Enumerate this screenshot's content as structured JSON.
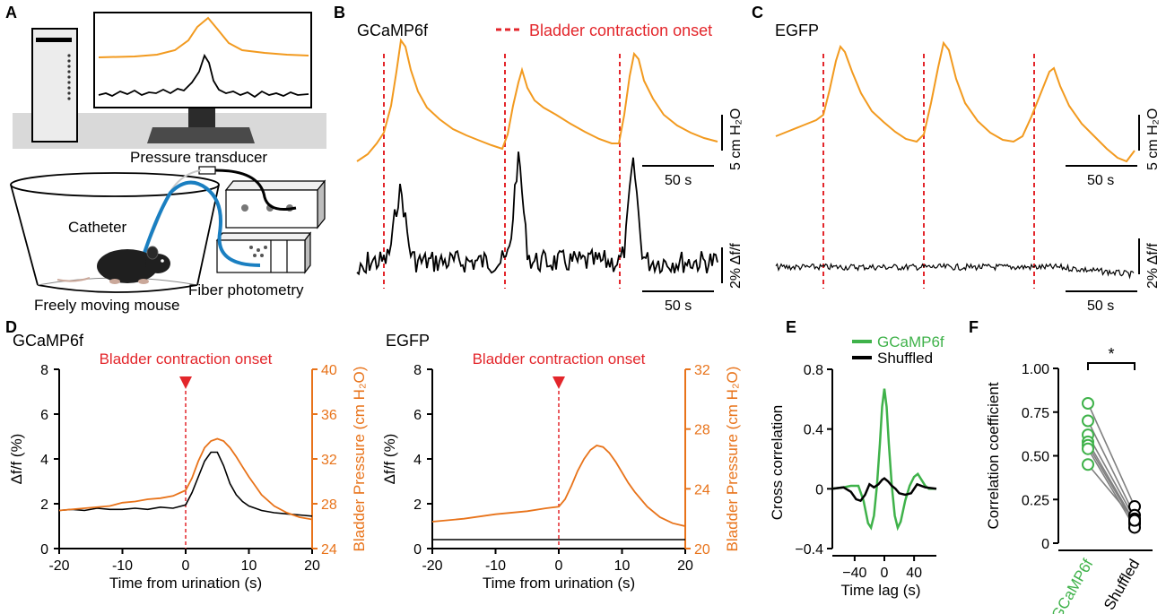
{
  "colors": {
    "orange": "#f29a1f",
    "pressure": "#e8731a",
    "red": "#e3262b",
    "green": "#3fb24a",
    "gray": "#808080",
    "blue": "#1a7fc1",
    "black": "#000000"
  },
  "panels": {
    "a": {
      "letter": "A",
      "pressure_transducer": "Pressure transducer",
      "catheter": "Catheter",
      "fiber_photometry": "Fiber photometry",
      "freely_moving_mouse": "Freely moving mouse",
      "icons": [
        "computer-tower-icon",
        "monitor-icon",
        "mouse-icon",
        "cage-icon",
        "photometry-box-icon",
        "transducer-box-icon"
      ]
    },
    "b": {
      "letter": "B",
      "title": "GCaMP6f",
      "legend": "Bladder contraction onset",
      "pressure_scale": "5 cm H₂O",
      "signal_scale": "2% Δf/f",
      "time_scale_1": "50 s",
      "time_scale_2": "50 s",
      "onsets_s": [
        12,
        75,
        134
      ]
    },
    "c": {
      "letter": "C",
      "title": "EGFP",
      "pressure_scale": "5 cm H₂O",
      "signal_scale": "2% Δf/f",
      "time_scale_1": "50 s",
      "time_scale_2": "50 s",
      "onsets_s": [
        25,
        75,
        129
      ]
    },
    "d": {
      "letter": "D"
    },
    "e": {
      "letter": "E"
    },
    "f": {
      "letter": "F"
    }
  },
  "chart_data": [
    {
      "id": "D-left",
      "type": "line",
      "title": "GCaMP6f",
      "annotation": "Bladder contraction onset",
      "xlabel": "Time from urination (s)",
      "ylabel": "Δf/f (%)",
      "y2label": "Bladder Pressure (cm H₂O)",
      "xlim": [
        -20,
        20
      ],
      "ylim": [
        0,
        8
      ],
      "y2lim": [
        24,
        40
      ],
      "xticks": [
        "-20",
        "-10",
        "0",
        "10",
        "20"
      ],
      "yticks": [
        "0",
        "2",
        "4",
        "6",
        "8"
      ],
      "y2ticks": [
        "24",
        "28",
        "32",
        "36",
        "40"
      ],
      "series": [
        {
          "name": "Δf/f",
          "axis": "left",
          "color": "black",
          "x": [
            -20,
            -18,
            -16,
            -14,
            -12,
            -10,
            -8,
            -6,
            -4,
            -2,
            0,
            1,
            2,
            3,
            4,
            5,
            6,
            7,
            8,
            9,
            10,
            11,
            12,
            14,
            16,
            18,
            20
          ],
          "values": [
            1.7,
            1.75,
            1.7,
            1.8,
            1.75,
            1.75,
            1.8,
            1.75,
            1.85,
            1.8,
            1.95,
            2.5,
            3.2,
            3.9,
            4.3,
            4.3,
            3.7,
            2.9,
            2.4,
            2.1,
            1.9,
            1.8,
            1.7,
            1.6,
            1.55,
            1.5,
            1.45
          ]
        },
        {
          "name": "Bladder Pressure",
          "axis": "right",
          "color": "pressure",
          "x": [
            -20,
            -16,
            -12,
            -10,
            -8,
            -6,
            -4,
            -2,
            0,
            1,
            2,
            3,
            4,
            5,
            6,
            7,
            8,
            9,
            10,
            11,
            12,
            14,
            16,
            18,
            20
          ],
          "values": [
            27.4,
            27.6,
            27.8,
            28.1,
            28.2,
            28.4,
            28.5,
            28.7,
            29.2,
            30.3,
            31.8,
            33.0,
            33.6,
            33.8,
            33.6,
            33.0,
            32.2,
            31.3,
            30.4,
            29.6,
            28.8,
            27.8,
            27.2,
            26.8,
            26.6
          ]
        }
      ]
    },
    {
      "id": "D-right",
      "type": "line",
      "title": "EGFP",
      "annotation": "Bladder contraction onset",
      "xlabel": "Time from urination (s)",
      "ylabel": "Δf/f (%)",
      "y2label": "Bladder Pressure (cm H₂O)",
      "xlim": [
        -20,
        20
      ],
      "ylim": [
        0,
        8
      ],
      "y2lim": [
        20,
        32
      ],
      "xticks": [
        "-20",
        "-10",
        "0",
        "10",
        "20"
      ],
      "yticks": [
        "0",
        "2",
        "4",
        "6",
        "8"
      ],
      "y2ticks": [
        "20",
        "24",
        "28",
        "32"
      ],
      "series": [
        {
          "name": "Δf/f",
          "axis": "left",
          "color": "black",
          "x": [
            -20,
            -10,
            0,
            10,
            20
          ],
          "values": [
            0.4,
            0.4,
            0.4,
            0.4,
            0.4
          ]
        },
        {
          "name": "Bladder Pressure",
          "axis": "right",
          "color": "pressure",
          "x": [
            -20,
            -15,
            -10,
            -5,
            -2,
            0,
            1,
            2,
            3,
            4,
            5,
            6,
            7,
            8,
            9,
            10,
            11,
            12,
            13,
            14,
            16,
            18,
            20
          ],
          "values": [
            21.8,
            22.0,
            22.3,
            22.5,
            22.7,
            22.8,
            23.3,
            24.2,
            25.2,
            26.0,
            26.6,
            26.9,
            26.8,
            26.4,
            25.8,
            25.1,
            24.4,
            23.8,
            23.3,
            22.8,
            22.1,
            21.7,
            21.5
          ]
        }
      ]
    },
    {
      "id": "E",
      "type": "line",
      "xlabel": "Time lag (s)",
      "ylabel": "Cross correlation",
      "xlim": [
        -70,
        70
      ],
      "ylim": [
        -0.4,
        0.8
      ],
      "xticks": [
        "−40",
        "0",
        "40"
      ],
      "yticks": [
        "−0.4",
        "0",
        "0.4",
        "0.8"
      ],
      "legend": [
        "GCaMP6f",
        "Shuffled"
      ],
      "series": [
        {
          "name": "GCaMP6f",
          "color": "green",
          "x": [
            -70,
            -55,
            -45,
            -35,
            -28,
            -22,
            -18,
            -14,
            -10,
            -6,
            -3,
            0,
            3,
            6,
            10,
            14,
            18,
            22,
            28,
            34,
            40,
            45,
            50,
            55,
            60,
            70
          ],
          "values": [
            0,
            0.01,
            0.02,
            0.02,
            -0.08,
            -0.23,
            -0.26,
            -0.18,
            0.02,
            0.3,
            0.55,
            0.67,
            0.55,
            0.3,
            0.02,
            -0.18,
            -0.26,
            -0.22,
            -0.08,
            0.02,
            0.08,
            0.1,
            0.06,
            0.02,
            0,
            0
          ]
        },
        {
          "name": "Shuffled",
          "color": "black",
          "x": [
            -70,
            -55,
            -45,
            -38,
            -32,
            -26,
            -20,
            -14,
            -8,
            -3,
            0,
            5,
            10,
            15,
            20,
            28,
            36,
            44,
            55,
            70
          ],
          "values": [
            0,
            0.01,
            -0.02,
            -0.07,
            -0.08,
            -0.04,
            0.03,
            0.01,
            0.03,
            0.06,
            0.07,
            0.05,
            0.02,
            0.0,
            -0.03,
            -0.04,
            -0.03,
            0.03,
            0.01,
            0
          ]
        }
      ]
    },
    {
      "id": "F",
      "type": "scatter",
      "ylabel": "Correlation coefficient",
      "categories": [
        "GCaMP6f",
        "Shuffled"
      ],
      "ylim": [
        0,
        1
      ],
      "yticks": [
        "0",
        "0.25",
        "0.50",
        "0.75",
        "1.00"
      ],
      "significance": "*",
      "pairs": [
        [
          0.8,
          0.21
        ],
        [
          0.7,
          0.16
        ],
        [
          0.62,
          0.14
        ],
        [
          0.58,
          0.12
        ],
        [
          0.56,
          0.11
        ],
        [
          0.54,
          0.09
        ],
        [
          0.45,
          0.13
        ]
      ]
    }
  ]
}
